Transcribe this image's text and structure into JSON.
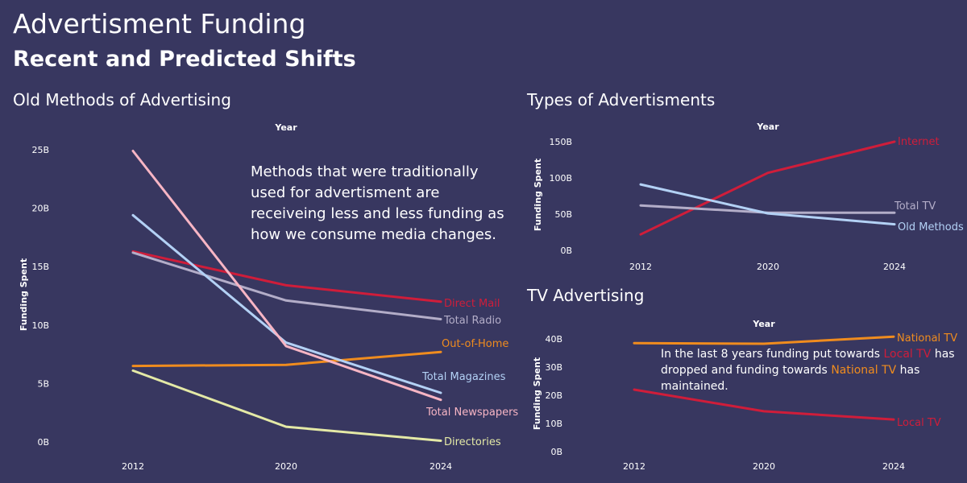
{
  "title": "Advertisment Funding",
  "subtitle": "Recent and Predicted Shifts",
  "charts": {
    "old": {
      "title": "Old Methods of Advertising",
      "xlabel": "Year",
      "ylabel": "Funding Spent",
      "yticks": [
        "0B",
        "5B",
        "10B",
        "15B",
        "20B",
        "25B"
      ],
      "note": "Methods that were traditionally used for advertisment are receiveing less and less funding as how we consume media changes."
    },
    "types": {
      "title": "Types of Advertisments",
      "xlabel": "Year",
      "ylabel": "Funding Spent",
      "yticks": [
        "0B",
        "50B",
        "100B",
        "150B"
      ]
    },
    "tv": {
      "title": "TV Advertising",
      "xlabel": "Year",
      "ylabel": "Funding Spent",
      "yticks": [
        "0B",
        "10B",
        "20B",
        "30B",
        "40B"
      ],
      "note": {
        "part1": "In the last 8 years funding put towards ",
        "local": "Local TV",
        "part2": " has dropped and funding towards ",
        "national": "National TV",
        "part3": " has maintained."
      }
    }
  },
  "chart_data": [
    {
      "type": "line",
      "x": [
        2012,
        2020,
        2024
      ],
      "ylim": [
        0,
        25
      ],
      "series": [
        {
          "name": "Direct Mail",
          "values": [
            16.3,
            13.4,
            12.0
          ],
          "color": "#cf1d3a"
        },
        {
          "name": "Total Radio",
          "values": [
            16.2,
            12.1,
            10.5
          ],
          "color": "#b3adc8"
        },
        {
          "name": "Out-of-Home",
          "values": [
            6.5,
            6.6,
            7.7
          ],
          "color": "#f08c1e"
        },
        {
          "name": "Total Magazines",
          "values": [
            19.4,
            8.5,
            4.2
          ],
          "color": "#b3d1f5"
        },
        {
          "name": "Total Newspapers",
          "values": [
            24.9,
            8.2,
            3.6
          ],
          "color": "#f7b5c4"
        },
        {
          "name": "Directories",
          "values": [
            6.1,
            1.3,
            0.1
          ],
          "color": "#e4e9a6"
        }
      ]
    },
    {
      "type": "line",
      "x": [
        2012,
        2020,
        2024
      ],
      "ylim": [
        0,
        150
      ],
      "series": [
        {
          "name": "Internet",
          "values": [
            22,
            107,
            150
          ],
          "color": "#cf1d3a"
        },
        {
          "name": "Total TV",
          "values": [
            62,
            52,
            52
          ],
          "color": "#b3adc8"
        },
        {
          "name": "Old Methods",
          "values": [
            91,
            51,
            36
          ],
          "color": "#b3d1f5"
        }
      ]
    },
    {
      "type": "line",
      "x": [
        2012,
        2020,
        2024
      ],
      "ylim": [
        0,
        40
      ],
      "series": [
        {
          "name": "National TV",
          "values": [
            38.5,
            38.3,
            40.8
          ],
          "color": "#f08c1e"
        },
        {
          "name": "Local TV",
          "values": [
            22.0,
            14.3,
            11.4
          ],
          "color": "#cf1d3a"
        }
      ]
    }
  ]
}
